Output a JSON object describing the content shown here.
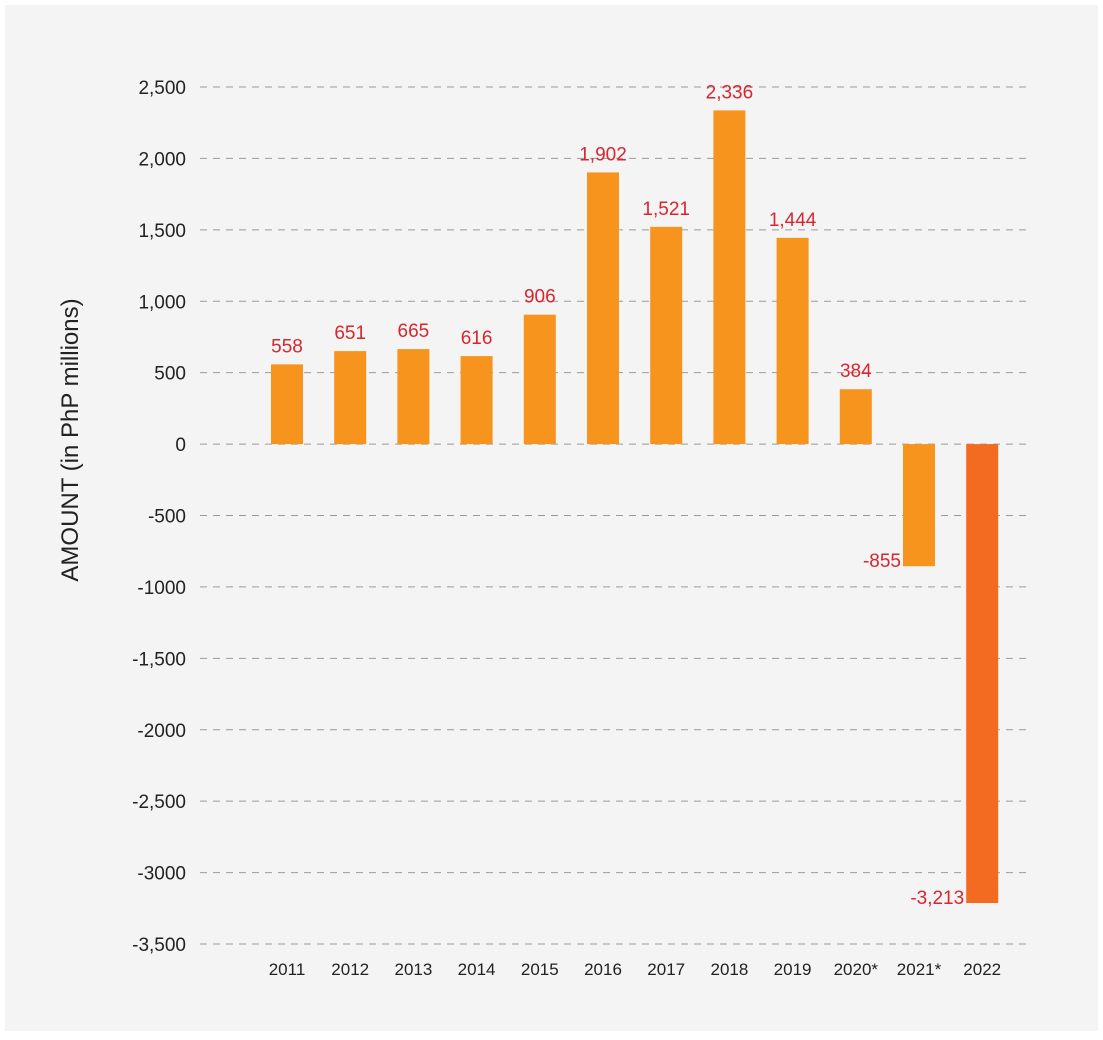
{
  "chart_data": {
    "type": "bar",
    "ylabel": "AMOUNT (in PhP millions)",
    "xlabel": "",
    "title": "",
    "ylim": [
      -3500,
      2500
    ],
    "y_ticks": [
      {
        "value": 2500,
        "label": "2,500"
      },
      {
        "value": 2000,
        "label": "2,000"
      },
      {
        "value": 1500,
        "label": "1,500"
      },
      {
        "value": 1000,
        "label": "1,000"
      },
      {
        "value": 500,
        "label": "500"
      },
      {
        "value": 0,
        "label": "0"
      },
      {
        "value": -500,
        "label": "-500"
      },
      {
        "value": -1000,
        "label": "-1000"
      },
      {
        "value": -1500,
        "label": "-1,500"
      },
      {
        "value": -2000,
        "label": "-2000"
      },
      {
        "value": -2500,
        "label": "-2,500"
      },
      {
        "value": -3000,
        "label": "-3000"
      },
      {
        "value": -3500,
        "label": "-3,500"
      }
    ],
    "categories": [
      "2011",
      "2012",
      "2013",
      "2014",
      "2015",
      "2016",
      "2017",
      "2018",
      "2019",
      "2020*",
      "2021*",
      "2022"
    ],
    "values": [
      558,
      651,
      665,
      616,
      906,
      1902,
      1521,
      2336,
      1444,
      384,
      -855,
      -3213
    ],
    "data_labels": [
      "558",
      "651",
      "665",
      "616",
      "906",
      "1,902",
      "1,521",
      "2,336",
      "1,444",
      "384",
      "-855",
      "-3,213"
    ],
    "colors": {
      "bar": "#f7941d",
      "highlight_bar": "#f26b21",
      "data_label": "#d7262f",
      "grid": "#9a9a9a"
    },
    "highlight_index": 11,
    "grid": "dashed horizontal",
    "legend": "none"
  }
}
